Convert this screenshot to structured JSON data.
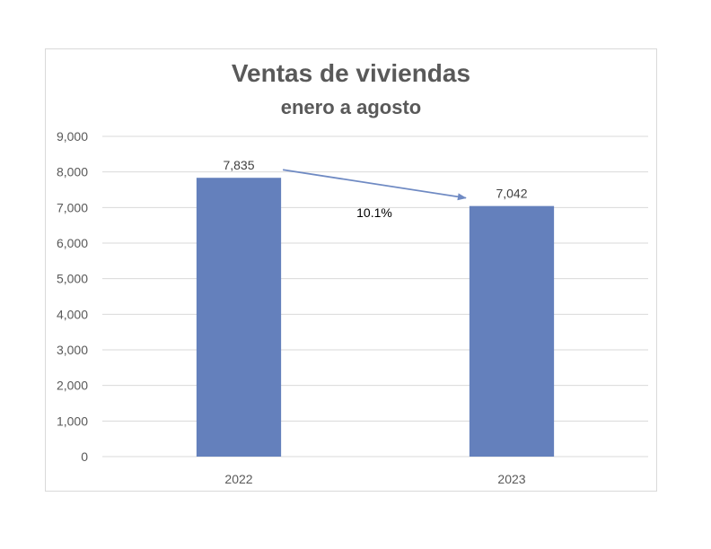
{
  "chart_data": {
    "type": "bar",
    "title": "Ventas de viviendas",
    "subtitle": "enero a agosto",
    "categories": [
      "2022",
      "2023"
    ],
    "values": [
      7835,
      7042
    ],
    "data_labels": [
      "7,835",
      "7,042"
    ],
    "ylim": [
      0,
      9000
    ],
    "y_ticks": [
      0,
      1000,
      2000,
      3000,
      4000,
      5000,
      6000,
      7000,
      8000,
      9000
    ],
    "y_tick_labels": [
      "0",
      "1,000",
      "2,000",
      "3,000",
      "4,000",
      "5,000",
      "6,000",
      "7,000",
      "8,000",
      "9,000"
    ],
    "grid": true,
    "legend": "none",
    "annotation": {
      "text": "10.1%",
      "type": "arrow",
      "from": "2022",
      "to": "2023"
    },
    "bar_color": "#6480bc",
    "arrow_color": "#6f8ac3",
    "gridline_color": "#d9d9d9"
  }
}
